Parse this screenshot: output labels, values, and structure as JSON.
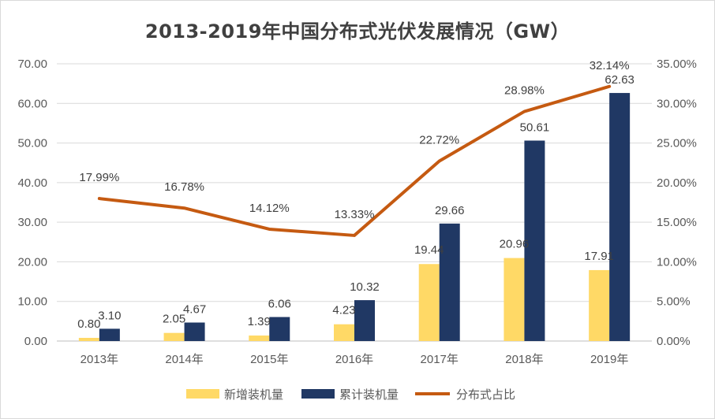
{
  "chart_data": {
    "type": "bar",
    "title": "2013-2019年中国分布式光伏发展情况（GW）",
    "categories": [
      "2013年",
      "2014年",
      "2015年",
      "2016年",
      "2017年",
      "2018年",
      "2019年"
    ],
    "series": [
      {
        "name": "新增装机量",
        "type": "bar",
        "axis": "left",
        "color": "#FFD966",
        "values": [
          0.8,
          2.05,
          1.39,
          4.23,
          19.44,
          20.96,
          17.91
        ],
        "labels": [
          "0.80",
          "2.05",
          "1.39",
          "4.23",
          "19.44",
          "20.96",
          "17.91"
        ]
      },
      {
        "name": "累计装机量",
        "type": "bar",
        "axis": "left",
        "color": "#203864",
        "values": [
          3.1,
          4.67,
          6.06,
          10.32,
          29.66,
          50.61,
          62.63
        ],
        "labels": [
          "3.10",
          "4.67",
          "6.06",
          "10.32",
          "29.66",
          "50.61",
          "62.63"
        ]
      },
      {
        "name": "分布式占比",
        "type": "line",
        "axis": "right",
        "color": "#C55A11",
        "values": [
          17.99,
          16.78,
          14.12,
          13.33,
          22.72,
          28.98,
          32.14
        ],
        "labels": [
          "17.99%",
          "16.78%",
          "14.12%",
          "13.33%",
          "22.72%",
          "28.98%",
          "32.14%"
        ]
      }
    ],
    "y_left": {
      "min": 0,
      "max": 70,
      "ticks": [
        "0.00",
        "10.00",
        "20.00",
        "30.00",
        "40.00",
        "50.00",
        "60.00",
        "70.00"
      ]
    },
    "y_right": {
      "min": 0,
      "max": 35,
      "ticks": [
        "0.00%",
        "5.00%",
        "10.00%",
        "15.00%",
        "20.00%",
        "25.00%",
        "30.00%",
        "35.00%"
      ]
    },
    "grid": true,
    "legend": "bottom"
  }
}
